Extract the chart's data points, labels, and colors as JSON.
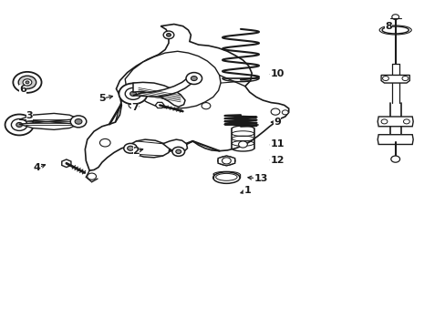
{
  "background_color": "#ffffff",
  "line_color": "#1a1a1a",
  "figsize": [
    4.89,
    3.6
  ],
  "dpi": 100,
  "labels": {
    "1": [
      0.555,
      0.415,
      0.535,
      0.4
    ],
    "2": [
      0.31,
      0.54,
      0.33,
      0.535
    ],
    "3": [
      0.068,
      0.62,
      0.068,
      0.6
    ],
    "4": [
      0.088,
      0.49,
      0.108,
      0.5
    ],
    "5": [
      0.238,
      0.7,
      0.255,
      0.69
    ],
    "6": [
      0.055,
      0.72,
      0.055,
      0.7
    ],
    "7": [
      0.31,
      0.68,
      0.31,
      0.665
    ],
    "8": [
      0.87,
      0.92,
      0.87,
      0.905
    ],
    "9": [
      0.62,
      0.62,
      0.598,
      0.62
    ],
    "10": [
      0.62,
      0.76,
      0.598,
      0.76
    ],
    "11": [
      0.62,
      0.56,
      0.598,
      0.56
    ],
    "12": [
      0.62,
      0.51,
      0.598,
      0.51
    ],
    "13": [
      0.58,
      0.455,
      0.545,
      0.46
    ]
  }
}
